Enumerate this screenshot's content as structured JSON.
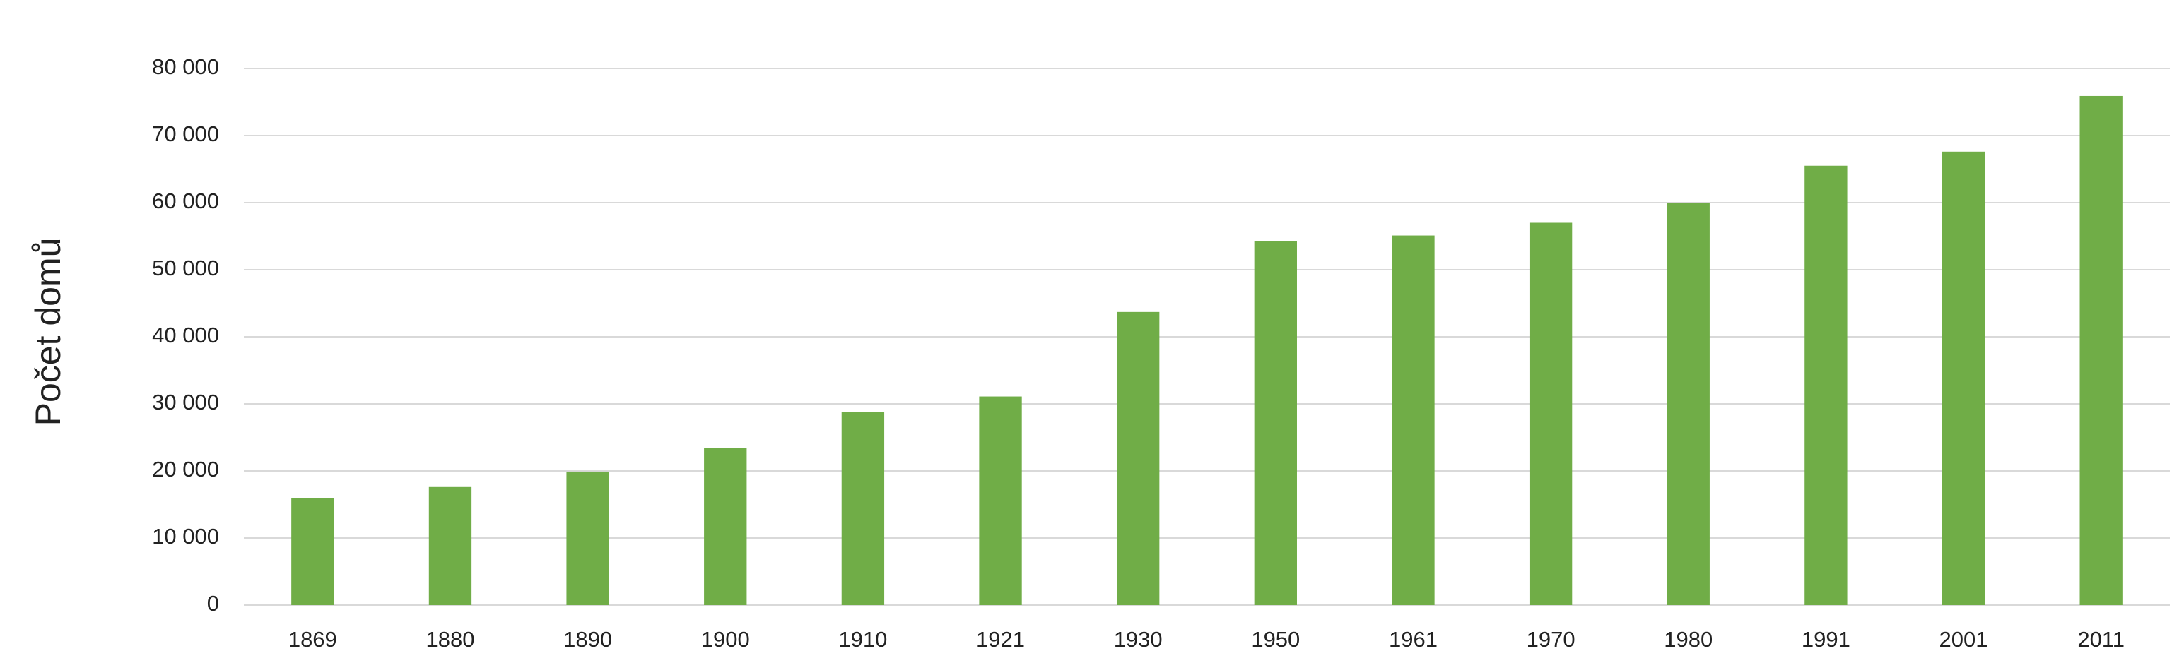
{
  "chart_data": {
    "type": "bar",
    "y_label": "Počet domů",
    "categories": [
      "1869",
      "1880",
      "1890",
      "1900",
      "1910",
      "1921",
      "1930",
      "1950",
      "1961",
      "1970",
      "1980",
      "1991",
      "2001",
      "2011"
    ],
    "values": [
      16000,
      17600,
      19900,
      23400,
      28800,
      31100,
      43700,
      54300,
      55100,
      57000,
      59900,
      65500,
      67600,
      75900
    ],
    "color": "#70ad47",
    "ylim": [
      0,
      80000
    ],
    "yticks": [
      0,
      {
        "value": 10000,
        "label": "10 000"
      },
      {
        "value": 20000,
        "label": "20 000"
      },
      {
        "value": 30000,
        "label": "30 000"
      },
      {
        "value": 40000,
        "label": "40 000"
      },
      {
        "value": 50000,
        "label": "50 000"
      },
      {
        "value": 60000,
        "label": "60 000"
      },
      {
        "value": 70000,
        "label": "70 000"
      },
      {
        "value": 80000,
        "label": "80 000"
      }
    ],
    "grid": true
  }
}
